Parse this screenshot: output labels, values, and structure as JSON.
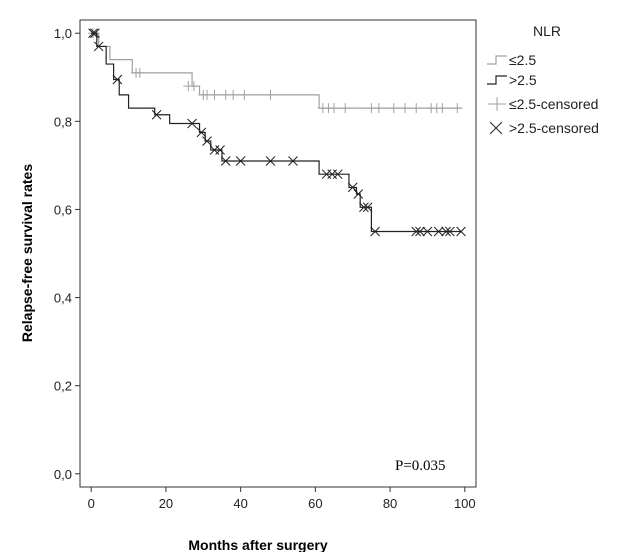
{
  "chart_data": {
    "type": "line",
    "xlabel": "Months after surgery",
    "ylabel": "Relapse-free survival rates",
    "xlim": [
      -3,
      103
    ],
    "ylim": [
      -0.03,
      1.03
    ],
    "x_ticks": [
      0,
      20,
      40,
      60,
      80,
      100
    ],
    "x_tick_labels": [
      "0",
      "20",
      "40",
      "60",
      "80",
      "100"
    ],
    "y_ticks": [
      0,
      0.2,
      0.4,
      0.6,
      0.8,
      1.0
    ],
    "y_tick_labels": [
      "0,0",
      "0,2",
      "0,4",
      "0,6",
      "0,8",
      "1,0"
    ],
    "annotation": "P=0.035",
    "legend": {
      "title": "NLR",
      "position": "top-right, outside plot",
      "entries": [
        "≤2.5",
        ">2.5",
        "≤2.5-censored",
        ">2.5-censored"
      ]
    },
    "series": [
      {
        "name": "≤2.5",
        "color": "#a0a0a0",
        "steps": [
          {
            "x": 0,
            "y": 1.0
          },
          {
            "x": 2,
            "y": 0.97
          },
          {
            "x": 5,
            "y": 0.94
          },
          {
            "x": 11,
            "y": 0.91
          },
          {
            "x": 27,
            "y": 0.88
          },
          {
            "x": 29,
            "y": 0.86
          },
          {
            "x": 61,
            "y": 0.83
          },
          {
            "x": 99,
            "y": 0.83
          }
        ],
        "censored": [
          {
            "x": 0.5,
            "y": 1.0
          },
          {
            "x": 12,
            "y": 0.91
          },
          {
            "x": 13,
            "y": 0.91
          },
          {
            "x": 26,
            "y": 0.88
          },
          {
            "x": 27.5,
            "y": 0.88
          },
          {
            "x": 30,
            "y": 0.86
          },
          {
            "x": 31,
            "y": 0.86
          },
          {
            "x": 33,
            "y": 0.86
          },
          {
            "x": 36,
            "y": 0.86
          },
          {
            "x": 38,
            "y": 0.86
          },
          {
            "x": 41,
            "y": 0.86
          },
          {
            "x": 48,
            "y": 0.86
          },
          {
            "x": 62,
            "y": 0.83
          },
          {
            "x": 63.5,
            "y": 0.83
          },
          {
            "x": 65,
            "y": 0.83
          },
          {
            "x": 68,
            "y": 0.83
          },
          {
            "x": 75,
            "y": 0.83
          },
          {
            "x": 77,
            "y": 0.83
          },
          {
            "x": 81,
            "y": 0.83
          },
          {
            "x": 84,
            "y": 0.83
          },
          {
            "x": 87,
            "y": 0.83
          },
          {
            "x": 91,
            "y": 0.83
          },
          {
            "x": 92.5,
            "y": 0.83
          },
          {
            "x": 94,
            "y": 0.83
          },
          {
            "x": 98,
            "y": 0.83
          }
        ]
      },
      {
        "name": ">2.5",
        "color": "#222222",
        "steps": [
          {
            "x": 0,
            "y": 1.0
          },
          {
            "x": 1.5,
            "y": 0.97
          },
          {
            "x": 4,
            "y": 0.93
          },
          {
            "x": 6,
            "y": 0.895
          },
          {
            "x": 7.5,
            "y": 0.86
          },
          {
            "x": 10,
            "y": 0.83
          },
          {
            "x": 17,
            "y": 0.815
          },
          {
            "x": 21,
            "y": 0.795
          },
          {
            "x": 29,
            "y": 0.775
          },
          {
            "x": 30.5,
            "y": 0.755
          },
          {
            "x": 32,
            "y": 0.735
          },
          {
            "x": 35,
            "y": 0.71
          },
          {
            "x": 61,
            "y": 0.68
          },
          {
            "x": 69,
            "y": 0.65
          },
          {
            "x": 71,
            "y": 0.635
          },
          {
            "x": 72,
            "y": 0.605
          },
          {
            "x": 75,
            "y": 0.55
          },
          {
            "x": 99,
            "y": 0.55
          }
        ],
        "censored": [
          {
            "x": 0.5,
            "y": 1.0
          },
          {
            "x": 1,
            "y": 1.0
          },
          {
            "x": 2,
            "y": 0.97
          },
          {
            "x": 7,
            "y": 0.895
          },
          {
            "x": 17.5,
            "y": 0.815
          },
          {
            "x": 27,
            "y": 0.795
          },
          {
            "x": 29.5,
            "y": 0.775
          },
          {
            "x": 31,
            "y": 0.755
          },
          {
            "x": 33,
            "y": 0.735
          },
          {
            "x": 34.5,
            "y": 0.735
          },
          {
            "x": 36,
            "y": 0.71
          },
          {
            "x": 40,
            "y": 0.71
          },
          {
            "x": 48,
            "y": 0.71
          },
          {
            "x": 54,
            "y": 0.71
          },
          {
            "x": 63,
            "y": 0.68
          },
          {
            "x": 64.5,
            "y": 0.68
          },
          {
            "x": 66,
            "y": 0.68
          },
          {
            "x": 70,
            "y": 0.65
          },
          {
            "x": 71.5,
            "y": 0.635
          },
          {
            "x": 73,
            "y": 0.605
          },
          {
            "x": 74,
            "y": 0.605
          },
          {
            "x": 76,
            "y": 0.55
          },
          {
            "x": 87,
            "y": 0.55
          },
          {
            "x": 88,
            "y": 0.55
          },
          {
            "x": 90,
            "y": 0.55
          },
          {
            "x": 93,
            "y": 0.55
          },
          {
            "x": 95,
            "y": 0.55
          },
          {
            "x": 96,
            "y": 0.55
          },
          {
            "x": 99,
            "y": 0.55
          }
        ]
      }
    ]
  }
}
